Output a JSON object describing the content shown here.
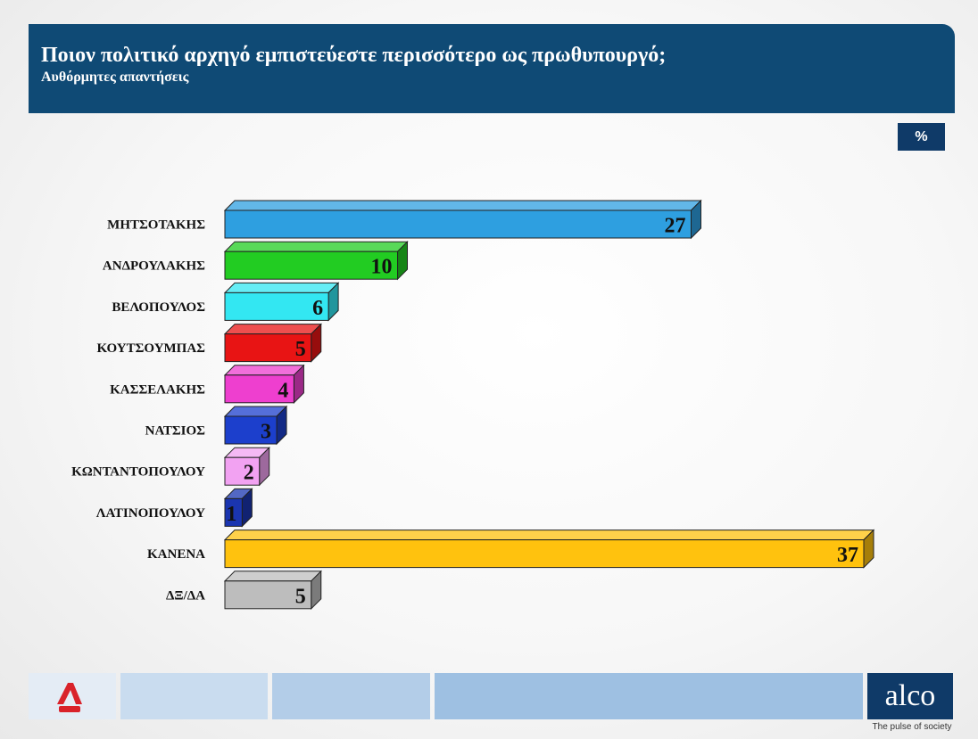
{
  "header": {
    "title": "Ποιον πολιτικό αρχηγό εμπιστεύεστε περισσότερο ως πρωθυπουργό;",
    "subtitle": "Αυθόρμητες απαντήσεις"
  },
  "unit_badge": "%",
  "footer": {
    "channel_logo_icon": "alpha-news-logo-icon",
    "brand": "alco",
    "tagline": "The pulse of society"
  },
  "chart_data": {
    "type": "bar",
    "orientation": "horizontal",
    "title": "Ποιον πολιτικό αρχηγό εμπιστεύεστε περισσότερο ως πρωθυπουργό;",
    "subtitle": "Αυθόρμητες απαντήσεις",
    "unit": "%",
    "categories": [
      "ΜΗΤΣΟΤΑΚΗΣ",
      "ΑΝΔΡΟΥΛΑΚΗΣ",
      "ΒΕΛΟΠΟΥΛΟΣ",
      "ΚΟΥΤΣΟΥΜΠΑΣ",
      "ΚΑΣΣΕΛΑΚΗΣ",
      "ΝΑΤΣΙΟΣ",
      "ΚΩΝΤΑΝΤΟΠΟΥΛΟΥ",
      "ΛΑΤΙΝΟΠΟΥΛΟΥ",
      "ΚΑΝΕΝΑ",
      "ΔΞ/ΔΑ"
    ],
    "values": [
      27,
      10,
      6,
      5,
      4,
      3,
      2,
      1,
      37,
      5
    ],
    "colors": [
      "#2e9fe0",
      "#22cc22",
      "#33e7f2",
      "#e81414",
      "#ee3fcf",
      "#1c3fcc",
      "#f2a2f2",
      "#1a35b0",
      "#ffc20e",
      "#bdbdbd"
    ],
    "xlim": [
      0,
      37
    ],
    "grid": false,
    "legend": "none"
  }
}
